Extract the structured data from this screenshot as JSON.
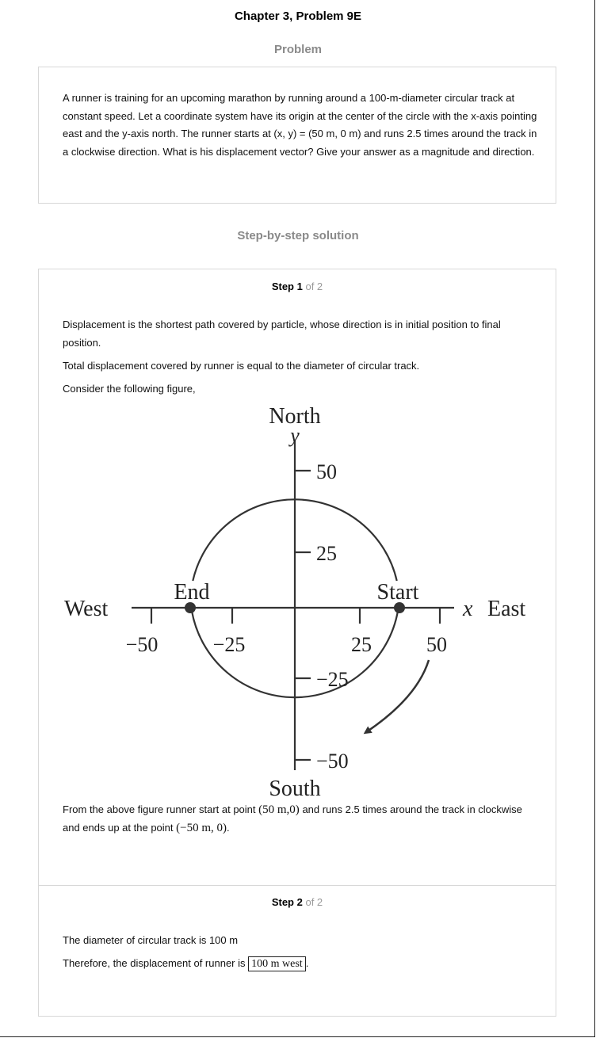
{
  "title": "Chapter 3, Problem 9E",
  "problem": {
    "heading": "Problem",
    "text": "A runner is training for an upcoming marathon by running around a 100-m-diameter circular track at constant speed. Let a coordinate system have its origin at the center of the circle with the x-axis pointing east and the y-axis north. The runner starts at (x, y) = (50 m, 0 m) and runs 2.5 times around the track in a clockwise direction. What is his displacement vector? Give your answer as a magnitude and direction."
  },
  "solution": {
    "heading": "Step-by-step solution",
    "steps": [
      {
        "label": "Step 1",
        "of": "of 2",
        "p1": "Displacement is the shortest path covered by particle, whose direction is in initial position to final position.",
        "p2": "Total displacement covered by runner is equal to the diameter of circular track.",
        "p3": "Consider the following figure,",
        "p4_a": "From the above figure runner start at point",
        "p4_math1": "(50 m,0)",
        "p4_b": "and runs 2.5 times around the track in clockwise and ends up at the point",
        "p4_math2": "(−50 m, 0)",
        "p4_end": "."
      },
      {
        "label": "Step 2",
        "of": "of 2",
        "p1": "The diameter of circular track is 100 m",
        "p2": "Therefore, the displacement of runner is",
        "answer": "100 m west",
        "p2_end": "."
      }
    ]
  },
  "figure": {
    "north": "North",
    "south": "South",
    "west": "West",
    "east": "East",
    "y_axis": "y",
    "x_axis": "x",
    "start": "Start",
    "end": "End",
    "x_ticks": [
      "−50",
      "−25",
      "25",
      "50"
    ],
    "y_ticks": [
      "50",
      "25",
      "−25",
      "−50"
    ],
    "circle_radius": 50,
    "start_point": [
      50,
      0
    ],
    "end_point": [
      -50,
      0
    ]
  }
}
